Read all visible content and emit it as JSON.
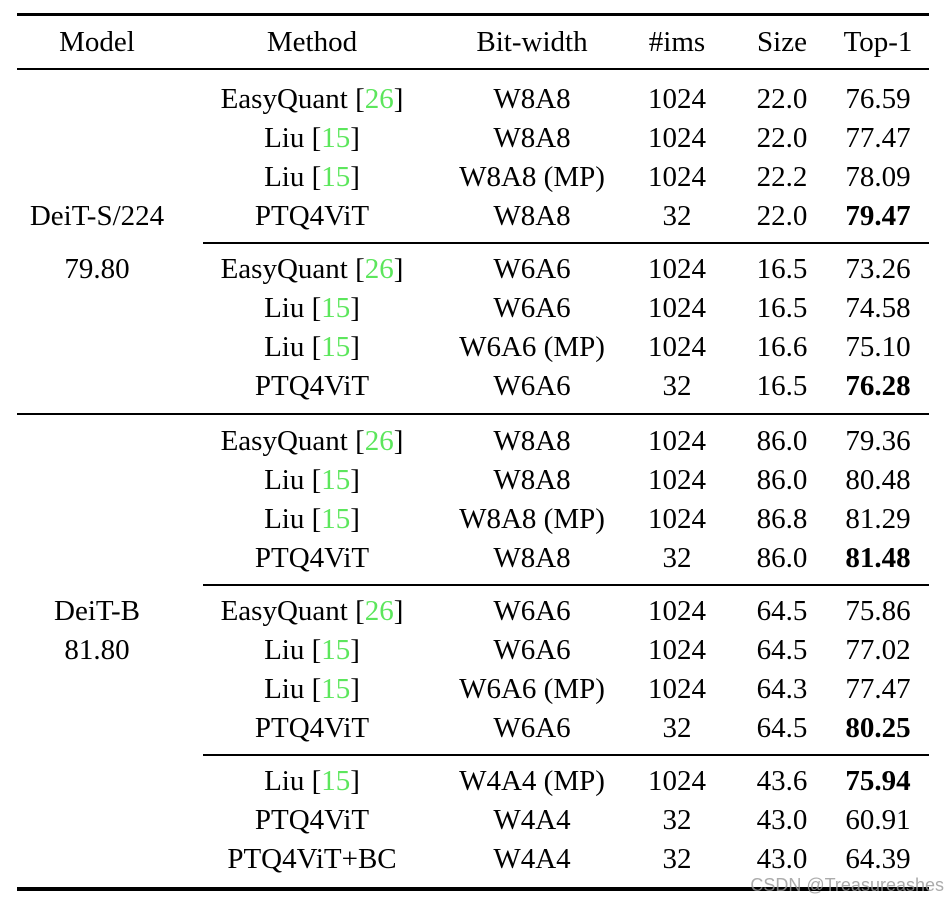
{
  "watermark": "CSDN @Treasureashes",
  "colors": {
    "citation_green": "#5CE65C",
    "text": "#000000",
    "background": "#ffffff",
    "watermark_gray": "#969696"
  },
  "table": {
    "headers": [
      "Model",
      "Method",
      "Bit-width",
      "#ims",
      "Size",
      "Top-1"
    ],
    "model_groups": [
      {
        "name": "DeiT-S/224",
        "baseline": "79.80",
        "name_row": 4,
        "baseline_row": 5
      },
      {
        "name": "DeiT-B",
        "baseline": "81.80",
        "name_row": 13,
        "baseline_row": 14
      }
    ],
    "rows": [
      {
        "method": "EasyQuant",
        "cite": "26",
        "bit": "W8A8",
        "ims": "1024",
        "size": "22.0",
        "top1": "76.59",
        "bold": false,
        "rule": "none"
      },
      {
        "method": "Liu",
        "cite": "15",
        "bit": "W8A8",
        "ims": "1024",
        "size": "22.0",
        "top1": "77.47",
        "bold": false,
        "rule": "none"
      },
      {
        "method": "Liu",
        "cite": "15",
        "bit": "W8A8 (MP)",
        "ims": "1024",
        "size": "22.2",
        "top1": "78.09",
        "bold": false,
        "rule": "none"
      },
      {
        "method": "PTQ4ViT",
        "cite": null,
        "bit": "W8A8",
        "ims": "32",
        "size": "22.0",
        "top1": "79.47",
        "bold": true,
        "rule": "none"
      },
      {
        "method": "EasyQuant",
        "cite": "26",
        "bit": "W6A6",
        "ims": "1024",
        "size": "16.5",
        "top1": "73.26",
        "bold": false,
        "rule": "partial"
      },
      {
        "method": "Liu",
        "cite": "15",
        "bit": "W6A6",
        "ims": "1024",
        "size": "16.5",
        "top1": "74.58",
        "bold": false,
        "rule": "none"
      },
      {
        "method": "Liu",
        "cite": "15",
        "bit": "W6A6 (MP)",
        "ims": "1024",
        "size": "16.6",
        "top1": "75.10",
        "bold": false,
        "rule": "none"
      },
      {
        "method": "PTQ4ViT",
        "cite": null,
        "bit": "W6A6",
        "ims": "32",
        "size": "16.5",
        "top1": "76.28",
        "bold": true,
        "rule": "none"
      },
      {
        "method": "EasyQuant",
        "cite": "26",
        "bit": "W8A8",
        "ims": "1024",
        "size": "86.0",
        "top1": "79.36",
        "bold": false,
        "rule": "full"
      },
      {
        "method": "Liu",
        "cite": "15",
        "bit": "W8A8",
        "ims": "1024",
        "size": "86.0",
        "top1": "80.48",
        "bold": false,
        "rule": "none"
      },
      {
        "method": "Liu",
        "cite": "15",
        "bit": "W8A8 (MP)",
        "ims": "1024",
        "size": "86.8",
        "top1": "81.29",
        "bold": false,
        "rule": "none"
      },
      {
        "method": "PTQ4ViT",
        "cite": null,
        "bit": "W8A8",
        "ims": "32",
        "size": "86.0",
        "top1": "81.48",
        "bold": true,
        "rule": "none"
      },
      {
        "method": "EasyQuant",
        "cite": "26",
        "bit": "W6A6",
        "ims": "1024",
        "size": "64.5",
        "top1": "75.86",
        "bold": false,
        "rule": "partial"
      },
      {
        "method": "Liu",
        "cite": "15",
        "bit": "W6A6",
        "ims": "1024",
        "size": "64.5",
        "top1": "77.02",
        "bold": false,
        "rule": "none"
      },
      {
        "method": "Liu",
        "cite": "15",
        "bit": "W6A6 (MP)",
        "ims": "1024",
        "size": "64.3",
        "top1": "77.47",
        "bold": false,
        "rule": "none"
      },
      {
        "method": "PTQ4ViT",
        "cite": null,
        "bit": "W6A6",
        "ims": "32",
        "size": "64.5",
        "top1": "80.25",
        "bold": true,
        "rule": "none"
      },
      {
        "method": "Liu",
        "cite": "15",
        "bit": "W4A4 (MP)",
        "ims": "1024",
        "size": "43.6",
        "top1": "75.94",
        "bold": true,
        "rule": "partial"
      },
      {
        "method": "PTQ4ViT",
        "cite": null,
        "bit": "W4A4",
        "ims": "32",
        "size": "43.0",
        "top1": "60.91",
        "bold": false,
        "rule": "none"
      },
      {
        "method": "PTQ4ViT+BC",
        "cite": null,
        "bit": "W4A4",
        "ims": "32",
        "size": "43.0",
        "top1": "64.39",
        "bold": false,
        "rule": "none"
      }
    ]
  }
}
